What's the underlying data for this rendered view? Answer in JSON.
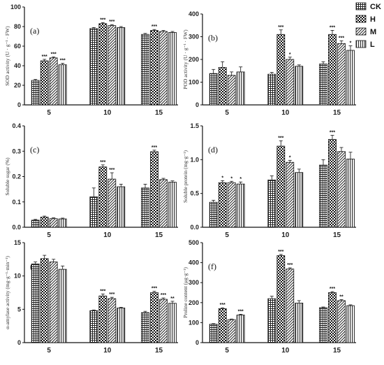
{
  "chart_data": [
    {
      "type": "bar",
      "panel_label": "(a)",
      "ylabel": "SOD activity (U · g⁻¹ · FW)",
      "categories": [
        "5",
        "10",
        "15"
      ],
      "ylim": [
        0,
        100
      ],
      "yticks": [
        "0",
        "20",
        "40",
        "60",
        "80",
        "100"
      ],
      "yticks_values": [
        0,
        20,
        40,
        60,
        80,
        100
      ],
      "series": [
        {
          "name": "CK",
          "values": [
            25,
            78,
            72
          ],
          "errors": [
            1,
            1,
            1
          ]
        },
        {
          "name": "H",
          "values": [
            45,
            83,
            76
          ],
          "errors": [
            1.5,
            1,
            1
          ]
        },
        {
          "name": "M",
          "values": [
            48,
            81,
            75
          ],
          "errors": [
            1,
            1,
            1
          ]
        },
        {
          "name": "L",
          "values": [
            41,
            79,
            74
          ],
          "errors": [
            1.5,
            1,
            1
          ]
        }
      ],
      "significance": [
        [
          "",
          "***",
          "***",
          "***"
        ],
        [
          "",
          "***",
          "***",
          ""
        ],
        [
          "",
          "***",
          "",
          ""
        ]
      ]
    },
    {
      "type": "bar",
      "panel_label": "(b)",
      "ylabel": "POD activity (U · g⁻¹ · FW)",
      "categories": [
        "5",
        "10",
        "15"
      ],
      "ylim": [
        0,
        400
      ],
      "yticks": [
        "0",
        "100",
        "200",
        "300",
        "400"
      ],
      "yticks_values": [
        0,
        100,
        200,
        300,
        400
      ],
      "series": [
        {
          "name": "CK",
          "values": [
            138,
            135,
            180
          ],
          "errors": [
            18,
            8,
            10
          ]
        },
        {
          "name": "H",
          "values": [
            165,
            310,
            310
          ],
          "errors": [
            25,
            20,
            18
          ]
        },
        {
          "name": "M",
          "values": [
            130,
            200,
            270
          ],
          "errors": [
            15,
            10,
            12
          ]
        },
        {
          "name": "L",
          "values": [
            145,
            170,
            240
          ],
          "errors": [
            22,
            6,
            20
          ]
        }
      ],
      "significance": [
        [
          "",
          "",
          "",
          ""
        ],
        [
          "",
          "***",
          "*",
          ""
        ],
        [
          "",
          "***",
          "***",
          "*"
        ]
      ]
    },
    {
      "type": "bar",
      "panel_label": "(c)",
      "ylabel": "Soluble sugar (%)",
      "categories": [
        "5",
        "10",
        "15"
      ],
      "ylim": [
        0,
        0.4
      ],
      "yticks": [
        "0.0",
        "0.1",
        "0.2",
        "0.3",
        "0.4"
      ],
      "yticks_values": [
        0,
        0.1,
        0.2,
        0.3,
        0.4
      ],
      "series": [
        {
          "name": "CK",
          "values": [
            0.028,
            0.12,
            0.155
          ],
          "errors": [
            0.003,
            0.035,
            0.015
          ]
        },
        {
          "name": "H",
          "values": [
            0.04,
            0.238,
            0.298
          ],
          "errors": [
            0.004,
            0.008,
            0.006
          ]
        },
        {
          "name": "M",
          "values": [
            0.034,
            0.19,
            0.188
          ],
          "errors": [
            0.003,
            0.025,
            0.005
          ]
        },
        {
          "name": "L",
          "values": [
            0.033,
            0.16,
            0.178
          ],
          "errors": [
            0.003,
            0.01,
            0.005
          ]
        }
      ],
      "significance": [
        [
          "",
          "",
          "",
          ""
        ],
        [
          "",
          "***",
          "***",
          ""
        ],
        [
          "",
          "***",
          "",
          ""
        ]
      ]
    },
    {
      "type": "bar",
      "panel_label": "(d)",
      "ylabel": "Soluble protein (mg·g⁻¹)",
      "categories": [
        "5",
        "10",
        "15"
      ],
      "ylim": [
        0,
        1.5
      ],
      "yticks": [
        "0.0",
        "0.5",
        "1.0",
        "1.5"
      ],
      "yticks_values": [
        0,
        0.5,
        1.0,
        1.5
      ],
      "series": [
        {
          "name": "CK",
          "values": [
            0.37,
            0.7,
            0.92
          ],
          "errors": [
            0.03,
            0.06,
            0.08
          ]
        },
        {
          "name": "H",
          "values": [
            0.66,
            1.2,
            1.3
          ],
          "errors": [
            0.03,
            0.08,
            0.06
          ]
        },
        {
          "name": "M",
          "values": [
            0.66,
            0.96,
            1.12
          ],
          "errors": [
            0.02,
            0.03,
            0.06
          ]
        },
        {
          "name": "L",
          "values": [
            0.64,
            0.81,
            1.01
          ],
          "errors": [
            0.03,
            0.05,
            0.1
          ]
        }
      ],
      "significance": [
        [
          "",
          "*",
          "*",
          "*"
        ],
        [
          "",
          "***",
          "*",
          ""
        ],
        [
          "",
          "***",
          "",
          ""
        ]
      ]
    },
    {
      "type": "bar",
      "panel_label": "(e)",
      "ylabel": "α-amylase activity (mg·g⁻¹·min⁻¹)",
      "categories": [
        "5",
        "10",
        "15"
      ],
      "ylim": [
        0,
        15
      ],
      "yticks": [
        "0",
        "5",
        "10",
        "15"
      ],
      "yticks_values": [
        0,
        5,
        10,
        15
      ],
      "series": [
        {
          "name": "CK",
          "values": [
            11.8,
            4.8,
            4.5
          ],
          "errors": [
            0.3,
            0.1,
            0.2
          ]
        },
        {
          "name": "H",
          "values": [
            12.6,
            7.0,
            7.5
          ],
          "errors": [
            0.5,
            0.3,
            0.2
          ]
        },
        {
          "name": "M",
          "values": [
            12.1,
            6.6,
            6.5
          ],
          "errors": [
            0.4,
            0.2,
            0.2
          ]
        },
        {
          "name": "L",
          "values": [
            11.0,
            5.2,
            5.9
          ],
          "errors": [
            0.5,
            0.1,
            0.3
          ]
        }
      ],
      "significance": [
        [
          "",
          "",
          "",
          ""
        ],
        [
          "",
          "***",
          "***",
          ""
        ],
        [
          "",
          "***",
          "***",
          "**"
        ]
      ]
    },
    {
      "type": "bar",
      "panel_label": "(f)",
      "ylabel": "Proline content (μg·g⁻¹)",
      "categories": [
        "5",
        "10",
        "15"
      ],
      "ylim": [
        0,
        500
      ],
      "yticks": [
        "0",
        "100",
        "200",
        "300",
        "400",
        "500"
      ],
      "yticks_values": [
        0,
        100,
        200,
        300,
        400,
        500
      ],
      "series": [
        {
          "name": "CK",
          "values": [
            92,
            220,
            175
          ],
          "errors": [
            3,
            12,
            3
          ]
        },
        {
          "name": "H",
          "values": [
            170,
            435,
            250
          ],
          "errors": [
            4,
            6,
            5
          ]
        },
        {
          "name": "M",
          "values": [
            115,
            368,
            210
          ],
          "errors": [
            3,
            6,
            5
          ]
        },
        {
          "name": "L",
          "values": [
            138,
            198,
            185
          ],
          "errors": [
            4,
            12,
            4
          ]
        }
      ],
      "significance": [
        [
          "",
          "***",
          "",
          "***"
        ],
        [
          "",
          "***",
          "***",
          ""
        ],
        [
          "",
          "***",
          "**",
          ""
        ]
      ]
    }
  ],
  "legend": {
    "entries": [
      {
        "name": "CK",
        "pattern": "grid"
      },
      {
        "name": "H",
        "pattern": "checker"
      },
      {
        "name": "M",
        "pattern": "diagonal"
      },
      {
        "name": "L",
        "pattern": "vertical"
      }
    ],
    "position": "top-right"
  }
}
